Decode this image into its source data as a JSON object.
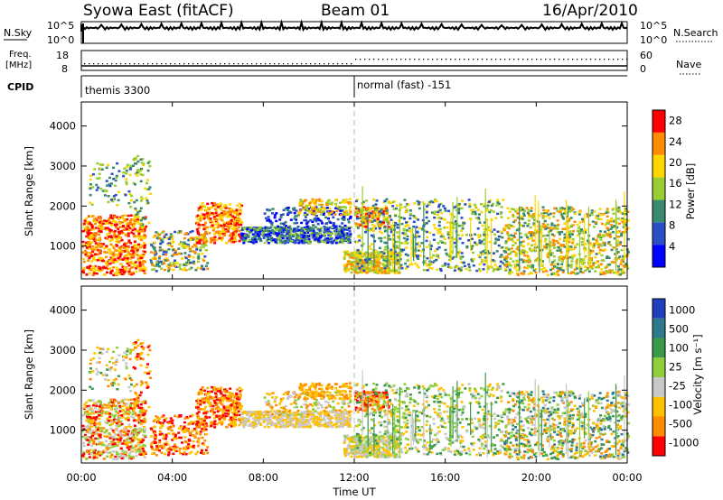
{
  "header": {
    "station": "Syowa East (fitACF)",
    "beam": "Beam 01",
    "date": "16/Apr/2010"
  },
  "noise_panel": {
    "left_label": "N.Sky",
    "right_label": "N.Search",
    "scale_top": "10^5",
    "scale_bottom": "10^0",
    "right_scale_top": "10^5",
    "right_scale_bottom": "10^0"
  },
  "freq_panel": {
    "left_label_1": "Freq.",
    "left_label_2": "[MHz]",
    "left_top": "18",
    "left_bottom": "8",
    "right_label": "Nave",
    "right_top": "60",
    "right_bottom": "0"
  },
  "cpid": {
    "label": "CPID",
    "segments": [
      {
        "start_hour": 0,
        "text": "themis 3300"
      },
      {
        "start_hour": 12,
        "text": "normal (fast) -151"
      }
    ]
  },
  "axes": {
    "ylabel": "Slant Range [km]",
    "xlabel": "Time UT",
    "x_ticks": [
      "00:00",
      "04:00",
      "08:00",
      "12:00",
      "16:00",
      "20:00",
      "00:00"
    ],
    "x_tick_hours": [
      0,
      4,
      8,
      12,
      16,
      20,
      24
    ],
    "y_ticks": [
      "1000",
      "2000",
      "3000",
      "4000"
    ],
    "y_tick_values": [
      1000,
      2000,
      3000,
      4000
    ],
    "y_range": [
      180,
      4600
    ],
    "x_range": [
      0,
      24
    ]
  },
  "chart_data": [
    {
      "type": "heatmap",
      "name": "power",
      "colorbar_label": "Power [dB]",
      "colorbar_ticks": [
        "4",
        "8",
        "12",
        "16",
        "20",
        "24",
        "28"
      ],
      "colors": [
        "#0000ff",
        "#2a4fc6",
        "#3a8a6e",
        "#9acd32",
        "#ffd700",
        "#ff8c00",
        "#ff0000"
      ],
      "range": [
        0,
        30
      ]
    },
    {
      "type": "heatmap",
      "name": "velocity",
      "colorbar_label": "Velocity [m s⁻¹]",
      "colorbar_ticks": [
        "1000",
        "500",
        "100",
        "25",
        "-25",
        "-100",
        "-500",
        "-1000"
      ],
      "colors": [
        "#1f3fbf",
        "#2e7a8c",
        "#3a9a4a",
        "#8fcf3c",
        "#c8c8c8",
        "#ffc000",
        "#ff8c00",
        "#ff0000"
      ],
      "range": [
        -1200,
        1200
      ]
    }
  ]
}
